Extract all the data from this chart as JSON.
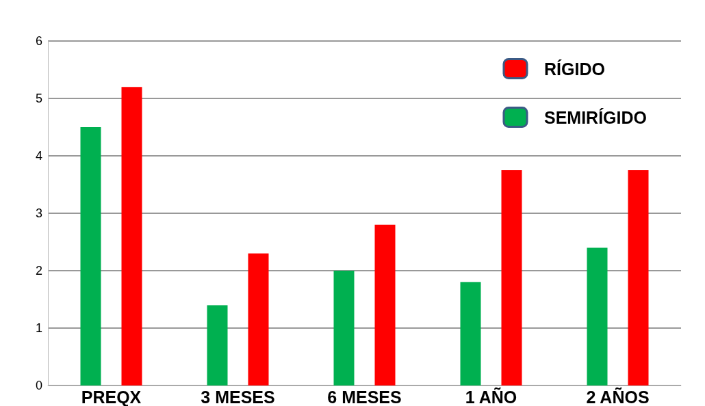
{
  "chart_data": {
    "type": "bar",
    "categories": [
      "PREQX",
      "3 MESES",
      "6 MESES",
      "1 AÑO",
      "2 AÑOS"
    ],
    "series": [
      {
        "name": "SEMIRÍGIDO",
        "color": "#00b050",
        "values": [
          4.5,
          1.4,
          2.0,
          1.8,
          2.4
        ]
      },
      {
        "name": "RÍGIDO",
        "color": "#ff0000",
        "values": [
          5.2,
          2.3,
          2.8,
          3.75,
          3.75
        ]
      }
    ],
    "ylim": [
      0,
      6
    ],
    "yticks": [
      0,
      1,
      2,
      3,
      4,
      5,
      6
    ],
    "grid": "y",
    "legend": "top right"
  }
}
